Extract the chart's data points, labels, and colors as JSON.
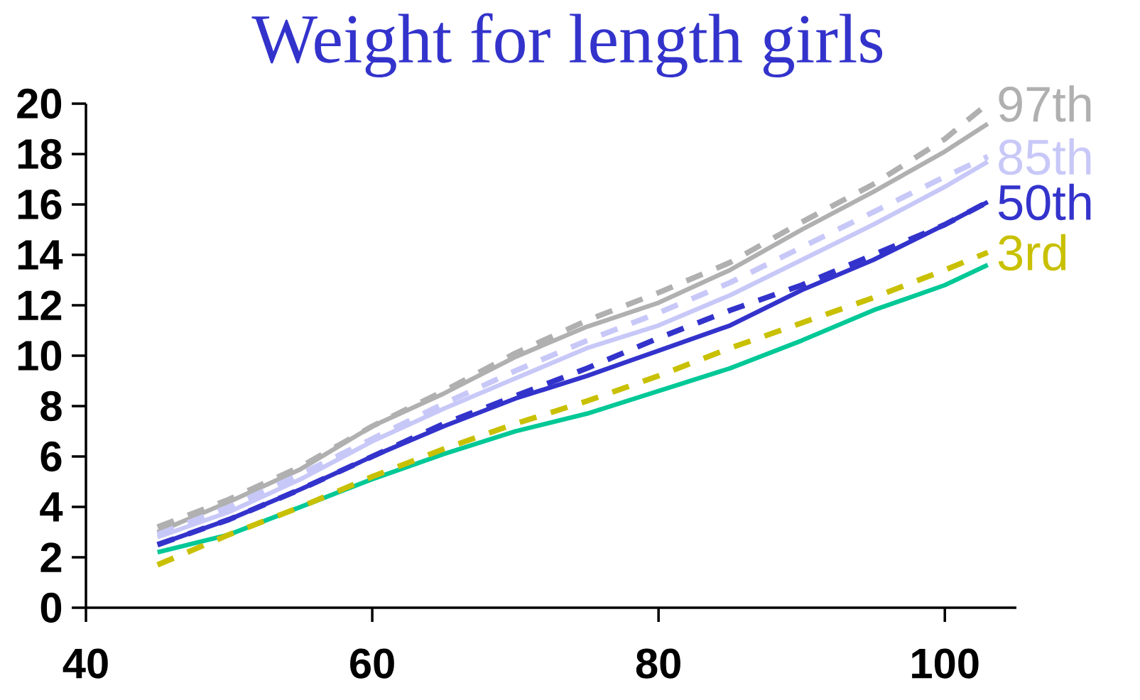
{
  "chart_data": {
    "type": "line",
    "title": "Weight for length girls",
    "x": [
      45,
      50,
      55,
      60,
      65,
      70,
      75,
      80,
      85,
      90,
      95,
      100,
      103
    ],
    "series": [
      {
        "color": "#b0b0b0",
        "line_style": "solid",
        "values": [
          3.0,
          4.2,
          5.5,
          7.2,
          8.5,
          9.95,
          11.15,
          12.1,
          13.4,
          15.0,
          16.5,
          18.1,
          19.2
        ]
      },
      {
        "color": "#c8c8f8",
        "line_style": "solid",
        "values": [
          2.8,
          3.8,
          5.1,
          6.6,
          7.9,
          9.1,
          10.3,
          11.2,
          12.4,
          13.8,
          15.2,
          16.7,
          17.7
        ]
      },
      {
        "color": "#3333cc",
        "line_style": "solid",
        "values": [
          2.5,
          3.5,
          4.7,
          6.0,
          7.2,
          8.3,
          9.2,
          10.2,
          11.2,
          12.6,
          13.8,
          15.2,
          16.1
        ]
      },
      {
        "color": "#00c896",
        "line_style": "solid",
        "values": [
          2.2,
          2.9,
          4.0,
          5.1,
          6.1,
          7.0,
          7.7,
          8.6,
          9.5,
          10.6,
          11.8,
          12.8,
          13.6
        ]
      },
      {
        "name": "97th",
        "color": "#b0b0b0",
        "line_style": "dashed",
        "values": [
          3.2,
          4.3,
          5.6,
          7.2,
          8.6,
          10.1,
          11.4,
          12.5,
          13.7,
          15.3,
          16.8,
          18.6,
          20.0
        ]
      },
      {
        "name": "85th",
        "color": "#c8c8f8",
        "line_style": "dashed",
        "values": [
          2.9,
          4.0,
          5.3,
          6.7,
          8.1,
          9.4,
          10.6,
          11.7,
          12.9,
          14.3,
          15.7,
          17.1,
          17.9
        ]
      },
      {
        "name": "50th",
        "color": "#3333cc",
        "line_style": "dashed",
        "values": [
          2.5,
          3.5,
          4.7,
          6.0,
          7.3,
          8.4,
          9.5,
          10.7,
          11.8,
          12.8,
          14.0,
          15.2,
          16.1
        ]
      },
      {
        "name": "3rd",
        "color": "#c8c000",
        "line_style": "dashed",
        "values": [
          1.7,
          2.9,
          4.0,
          5.2,
          6.3,
          7.3,
          8.2,
          9.2,
          10.3,
          11.3,
          12.3,
          13.4,
          14.1
        ]
      }
    ],
    "xlim": [
      40,
      105
    ],
    "ylim": [
      0,
      20
    ],
    "xticks": [
      40,
      60,
      80,
      100
    ],
    "yticks": [
      0,
      2,
      4,
      6,
      8,
      10,
      12,
      14,
      16,
      18,
      20
    ],
    "grid": false,
    "marker": "none"
  }
}
